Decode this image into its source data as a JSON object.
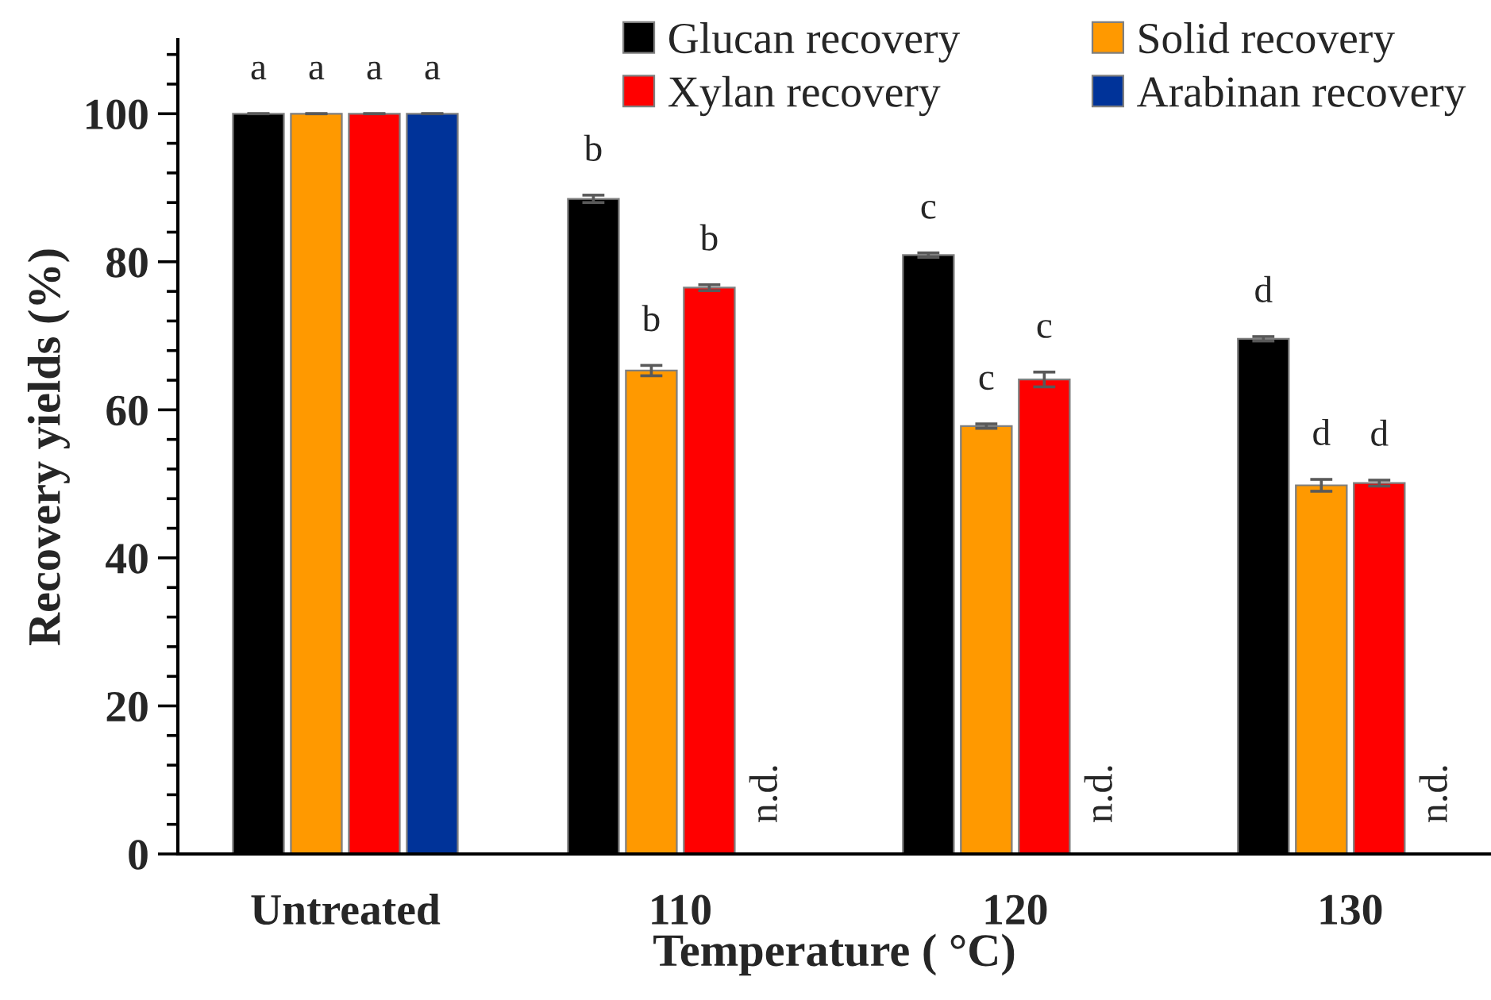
{
  "chart_data": {
    "type": "bar",
    "xlabel": "Temperature ( °C)",
    "ylabel": "Recovery yields (%)",
    "categories": [
      "Untreated",
      "110",
      "120",
      "130"
    ],
    "series": [
      {
        "name": "Glucan recovery",
        "color": "#000000",
        "values": [
          100,
          88.5,
          80.9,
          69.6
        ],
        "errors": [
          0,
          0.5,
          0.3,
          0.3
        ],
        "value_labels": [
          "a",
          "b",
          "c",
          "d"
        ]
      },
      {
        "name": "Solid recovery",
        "color": "#ff9900",
        "values": [
          100,
          65.3,
          57.8,
          49.8
        ],
        "errors": [
          0,
          0.7,
          0.3,
          0.8
        ],
        "value_labels": [
          "a",
          "b",
          "c",
          "d"
        ]
      },
      {
        "name": "Xylan recovery",
        "color": "#ff0000",
        "values": [
          100,
          76.5,
          64.1,
          50.1
        ],
        "errors": [
          0,
          0.4,
          1.0,
          0.4
        ],
        "value_labels": [
          "a",
          "b",
          "c",
          "d"
        ]
      },
      {
        "name": "Arabinan recovery",
        "color": "#003399",
        "values": [
          100,
          null,
          null,
          null
        ],
        "errors": [
          0,
          null,
          null,
          null
        ],
        "value_labels": [
          "a",
          "n.d.",
          "n.d.",
          "n.d."
        ]
      }
    ],
    "ylim": [
      0,
      110
    ],
    "yticks": [
      0,
      {
        "value": 4,
        "label": null
      },
      {
        "value": 8,
        "label": null
      },
      {
        "value": 12,
        "label": null
      },
      {
        "value": 16,
        "label": null
      },
      20,
      {
        "value": 24,
        "label": null
      },
      {
        "value": 28,
        "label": null
      },
      {
        "value": 32,
        "label": null
      },
      {
        "value": 36,
        "label": null
      },
      40,
      {
        "value": 44,
        "label": null
      },
      {
        "value": 48,
        "label": null
      },
      {
        "value": 52,
        "label": null
      },
      {
        "value": 56,
        "label": null
      },
      60,
      {
        "value": 64,
        "label": null
      },
      {
        "value": 68,
        "label": null
      },
      {
        "value": 72,
        "label": null
      },
      {
        "value": 76,
        "label": null
      },
      80,
      {
        "value": 84,
        "label": null
      },
      {
        "value": 88,
        "label": null
      },
      {
        "value": 92,
        "label": null
      },
      {
        "value": 96,
        "label": null
      },
      100,
      {
        "value": 104,
        "label": null
      },
      {
        "value": 108,
        "label": null
      }
    ],
    "legend": "top right"
  }
}
